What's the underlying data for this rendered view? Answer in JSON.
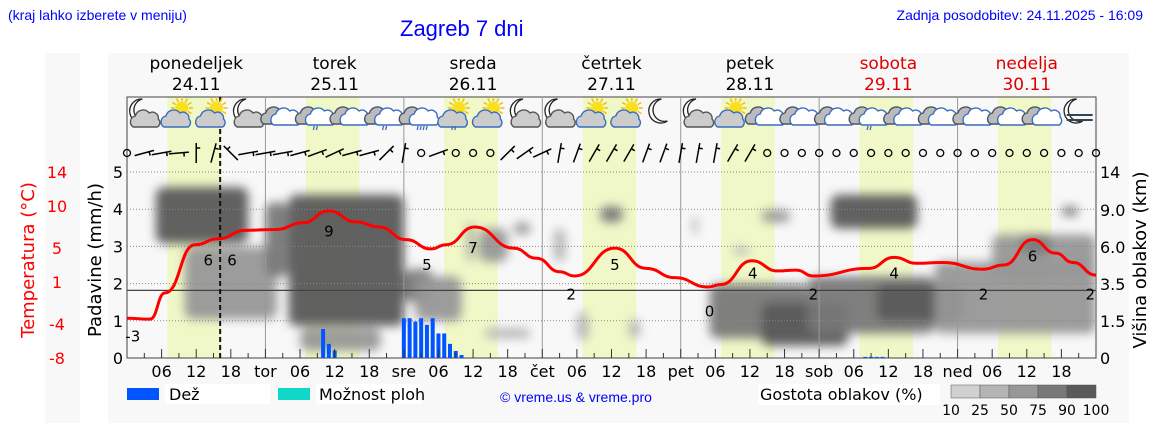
{
  "header": {
    "hint": "(kraj lahko izberete v meniju)",
    "title": "Zagreb 7 dni",
    "updated": "Zadnja posodobitev: 24.11.2025 - 16:09"
  },
  "colors": {
    "temperature": "#ff0000",
    "rain": "#0055ff",
    "showers": "#10d8c8",
    "daylight": "#f0f8c8",
    "plot_bg": "#f8f8f8",
    "weekend": "#dd0000",
    "link": "#0000ff"
  },
  "days": [
    {
      "name": "ponedeljek",
      "date": "24.11",
      "weekend": false
    },
    {
      "name": "torek",
      "date": "25.11",
      "weekend": false
    },
    {
      "name": "sreda",
      "date": "26.11",
      "weekend": false
    },
    {
      "name": "četrtek",
      "date": "27.11",
      "weekend": false
    },
    {
      "name": "petek",
      "date": "28.11",
      "weekend": false
    },
    {
      "name": "sobota",
      "date": "29.11",
      "weekend": true
    },
    {
      "name": "nedelja",
      "date": "30.11",
      "weekend": true
    }
  ],
  "weather_icons": [
    "moon-cloud",
    "sun-cloud",
    "sun-cloud",
    "moon-cloud",
    "cloud",
    "cloud-rain-light",
    "cloud",
    "cloud-rain-light",
    "cloud-rain-heavy",
    "sun-cloud-rain",
    "sun-cloud",
    "moon-cloud",
    "moon-cloud",
    "sun-cloud",
    "sun-cloud",
    "moon",
    "moon-cloud",
    "sun-cloud",
    "cloud",
    "cloud",
    "cloud",
    "cloud-sleet",
    "cloud",
    "cloud",
    "cloud",
    "cloud",
    "cloud",
    "moon-fog"
  ],
  "wind_symbols": [
    "calm",
    15,
    10,
    5,
    90,
    75,
    135,
    10,
    10,
    10,
    15,
    20,
    25,
    15,
    15,
    45,
    80,
    "calm",
    20,
    "calm",
    "calm",
    "calm",
    45,
    35,
    25,
    80,
    70,
    60,
    60,
    60,
    70,
    70,
    80,
    80,
    80,
    60,
    60,
    "calm",
    "calm",
    "calm",
    "calm",
    "calm",
    "calm",
    "calm",
    "calm",
    "calm",
    "calm",
    "calm",
    "calm",
    "calm",
    "calm",
    "calm",
    "calm",
    "calm",
    "calm",
    "calm",
    "calm"
  ],
  "chart_data": {
    "type": "line",
    "title": "Zagreb 7 dni",
    "x_unit": "hours from 24.11 00:00",
    "xlim": [
      0,
      168
    ],
    "x_tick_labels": [
      "06",
      "12",
      "18",
      "tor",
      "06",
      "12",
      "18",
      "sre",
      "06",
      "12",
      "18",
      "čet",
      "06",
      "12",
      "18",
      "pet",
      "06",
      "12",
      "18",
      "sob",
      "06",
      "12",
      "18",
      "ned",
      "06",
      "12",
      "18"
    ],
    "current_time_hour": 16.15,
    "daylight_hours": [
      7,
      16.3
    ],
    "temperature": {
      "axis_label": "Temperatura (°C)",
      "ticks": [
        "14",
        "10",
        "5",
        "1",
        "-4",
        "-8"
      ],
      "ylim": [
        -8,
        14
      ],
      "zero_line": 0,
      "points": [
        [
          0,
          -3.3
        ],
        [
          4,
          -3.4
        ],
        [
          6.6,
          -0.3
        ],
        [
          11.8,
          5.4
        ],
        [
          15.8,
          6.1
        ],
        [
          20.5,
          7.1
        ],
        [
          25.8,
          7.2
        ],
        [
          30.5,
          8.0
        ],
        [
          35,
          9.4
        ],
        [
          39.7,
          8.1
        ],
        [
          43.7,
          7.5
        ],
        [
          48.4,
          6.0
        ],
        [
          52.7,
          4.9
        ],
        [
          55.3,
          5.4
        ],
        [
          60.3,
          7.5
        ],
        [
          67,
          5.0
        ],
        [
          71,
          3.8
        ],
        [
          75,
          2.2
        ],
        [
          77.6,
          1.7
        ],
        [
          84.6,
          5.0
        ],
        [
          90,
          2.6
        ],
        [
          95,
          1.5
        ],
        [
          100.7,
          0.4
        ],
        [
          103,
          0.7
        ],
        [
          108.3,
          3.5
        ],
        [
          112.8,
          2.3
        ],
        [
          116,
          2.4
        ],
        [
          119,
          1.7
        ],
        [
          128.6,
          2.6
        ],
        [
          133,
          3.9
        ],
        [
          136.9,
          3.2
        ],
        [
          141.4,
          3.3
        ],
        [
          148.4,
          2.5
        ],
        [
          152,
          3.0
        ],
        [
          157,
          6.0
        ],
        [
          161,
          4.4
        ],
        [
          164,
          3.3
        ],
        [
          168,
          1.8
        ]
      ],
      "labels": [
        [
          1,
          "-3"
        ],
        [
          15.3,
          "6"
        ],
        [
          17,
          "6"
        ],
        [
          35,
          "9"
        ],
        [
          52,
          "5"
        ],
        [
          60,
          "7"
        ],
        [
          77,
          "2"
        ],
        [
          84.6,
          "5"
        ],
        [
          101,
          "0"
        ],
        [
          108.5,
          "4"
        ],
        [
          119,
          "2"
        ],
        [
          133,
          "4"
        ],
        [
          148.5,
          "2"
        ],
        [
          157,
          "6"
        ],
        [
          168,
          "2"
        ]
      ]
    },
    "precipitation": {
      "axis_label": "Padavine (mm/h)",
      "ticks": [
        "0",
        "1",
        "2",
        "3",
        "4",
        "5"
      ],
      "ylim": [
        0,
        5
      ],
      "rain": [
        [
          34,
          0.78
        ],
        [
          35,
          0.38
        ],
        [
          36,
          0.2
        ],
        [
          48,
          1.07
        ],
        [
          49,
          1.07
        ],
        [
          50,
          0.98
        ],
        [
          51,
          1.07
        ],
        [
          52,
          0.89
        ],
        [
          53,
          1.07
        ],
        [
          54,
          0.66
        ],
        [
          55,
          0.66
        ],
        [
          56,
          0.38
        ],
        [
          57,
          0.19
        ],
        [
          58,
          0.08
        ],
        [
          128,
          0.03
        ],
        [
          129,
          0.03
        ],
        [
          130,
          0.03
        ],
        [
          131,
          0.03
        ]
      ],
      "showers": []
    },
    "clouds": {
      "axis_label": "Višina oblakov (km)",
      "ticks": [
        "0",
        "1.5",
        "3.5",
        "6.0",
        "9.0",
        "14"
      ],
      "density_label": "Gostota oblakov (%)",
      "density_levels": [
        "10",
        "25",
        "50",
        "75",
        "90",
        "100"
      ],
      "density_colors": [
        "#d0d0d0",
        "#b4b4b4",
        "#979797",
        "#787878",
        "#5a5a5a"
      ],
      "blobs": [
        [
          10,
          26,
          1.6,
          6,
          50
        ],
        [
          5,
          21,
          6.3,
          12,
          90
        ],
        [
          24,
          28,
          4,
          10,
          75
        ],
        [
          28,
          48,
          1.3,
          11,
          90
        ],
        [
          30,
          44,
          0.3,
          1.2,
          50
        ],
        [
          48,
          53,
          2.5,
          4.5,
          75
        ],
        [
          50,
          58,
          1.5,
          4,
          50
        ],
        [
          59,
          60,
          5,
          8,
          50
        ],
        [
          61,
          66,
          5,
          7.5,
          50
        ],
        [
          67,
          70,
          7,
          8,
          50
        ],
        [
          74,
          76,
          5,
          7.5,
          30
        ],
        [
          78,
          80,
          0.7,
          2,
          30
        ],
        [
          62,
          70,
          0.8,
          1.2,
          25
        ],
        [
          82,
          86,
          8,
          9.5,
          75
        ],
        [
          87,
          89,
          0.8,
          1.6,
          25
        ],
        [
          98,
          99,
          7,
          8.5,
          25
        ],
        [
          101,
          118,
          0.8,
          3.5,
          75
        ],
        [
          110,
          125,
          0.5,
          2.5,
          90
        ],
        [
          118,
          140,
          1,
          4,
          75
        ],
        [
          130,
          145,
          1.5,
          3.5,
          90
        ],
        [
          140,
          168,
          1,
          5,
          50
        ],
        [
          150,
          168,
          4,
          7,
          50
        ],
        [
          122,
          137,
          7.5,
          11,
          90
        ],
        [
          110,
          115,
          8,
          9,
          50
        ],
        [
          105,
          108,
          5.5,
          6,
          25
        ],
        [
          155,
          160,
          5.5,
          7,
          75
        ],
        [
          162,
          165,
          8.5,
          9.5,
          75
        ]
      ]
    },
    "legend": {
      "rain": "Dež",
      "showers": "Možnost ploh"
    },
    "credit": "© vreme.us & vreme.pro"
  }
}
